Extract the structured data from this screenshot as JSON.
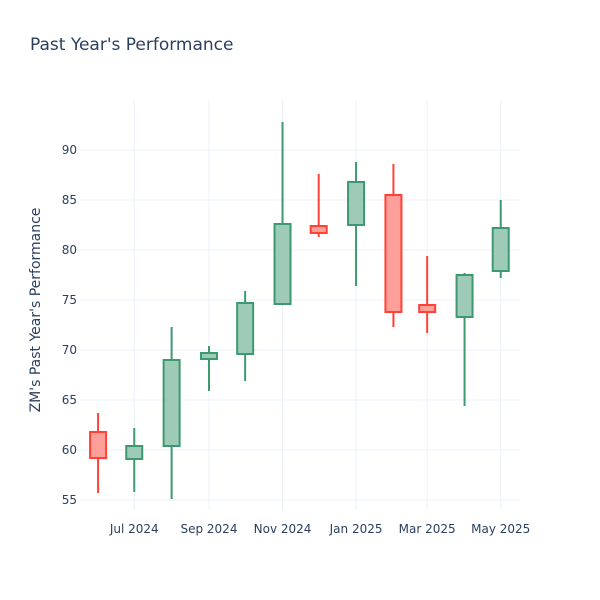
{
  "chart_data": {
    "type": "candlestick",
    "title": "Past Year's Performance",
    "xlabel": "",
    "ylabel": "ZM's Past Year's Performance",
    "ylim": [
      54,
      95
    ],
    "yticks": [
      55,
      60,
      65,
      70,
      75,
      80,
      85,
      90
    ],
    "xticks": [
      {
        "date": "2024-07-01",
        "label": "Jul 2024"
      },
      {
        "date": "2024-09-01",
        "label": "Sep 2024"
      },
      {
        "date": "2024-11-01",
        "label": "Nov 2024"
      },
      {
        "date": "2025-01-01",
        "label": "Jan 2025"
      },
      {
        "date": "2025-03-01",
        "label": "Mar 2025"
      },
      {
        "date": "2025-05-01",
        "label": "May 2025"
      }
    ],
    "xrange": [
      "2024-05-17",
      "2025-05-17"
    ],
    "grid": true,
    "colors": {
      "increasing": "#3d9970",
      "decreasing": "#ff4136",
      "increasing_fill": "#9ecbb7",
      "decreasing_fill": "#ff9f9a"
    },
    "candles": [
      {
        "date": "2024-06-01",
        "open": 61.8,
        "high": 63.7,
        "low": 55.7,
        "close": 59.2
      },
      {
        "date": "2024-07-01",
        "open": 59.1,
        "high": 62.2,
        "low": 55.8,
        "close": 60.4
      },
      {
        "date": "2024-08-01",
        "open": 60.4,
        "high": 72.3,
        "low": 55.1,
        "close": 69.0
      },
      {
        "date": "2024-09-01",
        "open": 69.1,
        "high": 70.4,
        "low": 65.9,
        "close": 69.7
      },
      {
        "date": "2024-10-01",
        "open": 69.6,
        "high": 75.9,
        "low": 66.9,
        "close": 74.7
      },
      {
        "date": "2024-11-01",
        "open": 74.6,
        "high": 92.8,
        "low": 74.5,
        "close": 82.6
      },
      {
        "date": "2024-12-01",
        "open": 82.4,
        "high": 87.6,
        "low": 81.3,
        "close": 81.7
      },
      {
        "date": "2025-01-01",
        "open": 82.5,
        "high": 88.8,
        "low": 76.4,
        "close": 86.8
      },
      {
        "date": "2025-02-01",
        "open": 85.5,
        "high": 88.6,
        "low": 72.3,
        "close": 73.8
      },
      {
        "date": "2025-03-01",
        "open": 74.5,
        "high": 79.4,
        "low": 71.7,
        "close": 73.8
      },
      {
        "date": "2025-04-01",
        "open": 73.3,
        "high": 77.7,
        "low": 64.4,
        "close": 77.5
      },
      {
        "date": "2025-05-01",
        "open": 77.9,
        "high": 85.0,
        "low": 77.2,
        "close": 82.2
      }
    ]
  }
}
